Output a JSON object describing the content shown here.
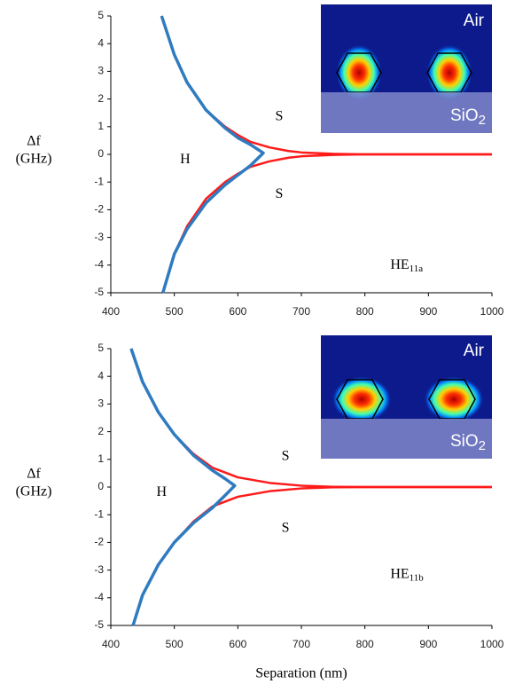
{
  "chart_data": [
    {
      "type": "line",
      "ylabel": [
        "Δf",
        "(GHz)"
      ],
      "xlim": [
        400,
        1000
      ],
      "xticks": [
        400,
        500,
        600,
        700,
        800,
        900,
        1000
      ],
      "ylim": [
        -5,
        5
      ],
      "yticks": [
        -5,
        -4,
        -3,
        -2,
        -1,
        0,
        1,
        2,
        3,
        4,
        5
      ],
      "annotations": [
        "S",
        "S",
        "H"
      ],
      "mode_label": {
        "main": "HE",
        "sub": "11a"
      },
      "inset": {
        "top": "Air",
        "bottom": "SiO",
        "bottom_sub": "2"
      },
      "series": [
        {
          "color": "#ff1a1a",
          "x": [
            480,
            500,
            520,
            550,
            580,
            600,
            620,
            650,
            680,
            700,
            750,
            800,
            1000
          ],
          "values": [
            5,
            3.6,
            2.6,
            1.6,
            1.0,
            0.7,
            0.45,
            0.25,
            0.12,
            0.07,
            0.02,
            0,
            0
          ]
        },
        {
          "color": "#ff1a1a",
          "x": [
            482,
            500,
            520,
            550,
            580,
            600,
            620,
            650,
            680,
            700,
            750,
            800,
            1000
          ],
          "values": [
            -5,
            -3.6,
            -2.6,
            -1.6,
            -1.0,
            -0.7,
            -0.45,
            -0.25,
            -0.12,
            -0.07,
            -0.02,
            0,
            0
          ]
        },
        {
          "color": "#2f7bc0",
          "x": [
            480,
            500,
            520,
            550,
            580,
            600,
            620,
            640,
            620,
            600,
            580,
            550,
            520,
            500,
            482
          ],
          "values": [
            5,
            3.6,
            2.6,
            1.6,
            0.95,
            0.6,
            0.35,
            0.05,
            -0.4,
            -0.75,
            -1.1,
            -1.75,
            -2.7,
            -3.6,
            -5
          ]
        }
      ]
    },
    {
      "type": "line",
      "ylabel": [
        "Δf",
        "(GHz)"
      ],
      "xlabel": "Separation (nm)",
      "xlim": [
        400,
        1000
      ],
      "xticks": [
        400,
        500,
        600,
        700,
        800,
        900,
        1000
      ],
      "ylim": [
        -5,
        5
      ],
      "yticks": [
        -5,
        -4,
        -3,
        -2,
        -1,
        0,
        1,
        2,
        3,
        4,
        5
      ],
      "annotations": [
        "S",
        "S",
        "H"
      ],
      "mode_label": {
        "main": "HE",
        "sub": "11b"
      },
      "inset": {
        "top": "Air",
        "bottom": "SiO",
        "bottom_sub": "2"
      },
      "series": [
        {
          "color": "#ff1a1a",
          "x": [
            432,
            450,
            475,
            500,
            530,
            560,
            600,
            650,
            700,
            750,
            800,
            1000
          ],
          "values": [
            5,
            3.8,
            2.7,
            1.9,
            1.2,
            0.7,
            0.35,
            0.15,
            0.05,
            0.01,
            0,
            0
          ]
        },
        {
          "color": "#ff1a1a",
          "x": [
            435,
            450,
            475,
            500,
            530,
            560,
            600,
            650,
            700,
            750,
            800,
            1000
          ],
          "values": [
            -5,
            -3.9,
            -2.8,
            -2.0,
            -1.25,
            -0.7,
            -0.35,
            -0.15,
            -0.05,
            -0.01,
            0,
            0
          ]
        },
        {
          "color": "#2f7bc0",
          "x": [
            432,
            450,
            475,
            500,
            530,
            560,
            580,
            595,
            580,
            560,
            530,
            500,
            475,
            450,
            435
          ],
          "values": [
            5,
            3.8,
            2.7,
            1.9,
            1.15,
            0.6,
            0.3,
            0.05,
            -0.3,
            -0.75,
            -1.3,
            -2.0,
            -2.8,
            -3.9,
            -5
          ]
        }
      ]
    }
  ]
}
